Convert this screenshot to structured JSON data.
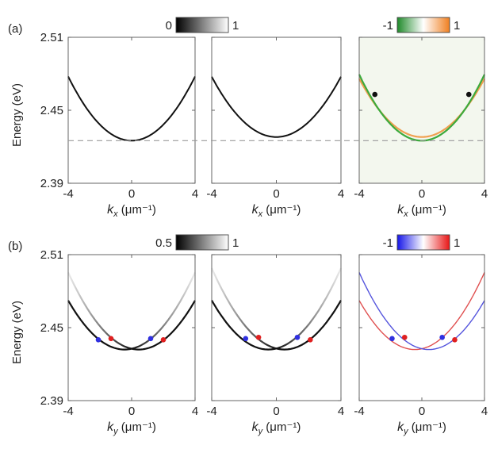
{
  "chart_data": [
    {
      "type": "line",
      "row_label": "(a)",
      "panel": 1,
      "xlabel": "k_x (μm⁻¹)",
      "ylabel": "Energy (eV)",
      "xlim": [
        -4,
        4
      ],
      "ylim": [
        2.39,
        2.51
      ],
      "x_ticks": [
        "-4",
        "0",
        "4"
      ],
      "y_ticks": [
        "2.51",
        "2.45",
        "2.39"
      ],
      "colorbar": {
        "kind": "gray",
        "min_label": "0",
        "max_label": "1"
      },
      "series": [
        {
          "name": "dispersion",
          "color": "#111111",
          "min": 2.425,
          "curv": 0.0033,
          "width": 2.0
        }
      ],
      "reference_line": {
        "y": 2.425,
        "style": "dashed"
      }
    },
    {
      "type": "line",
      "row_label": "",
      "panel": 2,
      "xlabel": "k_x (μm⁻¹)",
      "xlim": [
        -4,
        4
      ],
      "ylim": [
        2.39,
        2.51
      ],
      "x_ticks": [
        "-4",
        "0",
        "4"
      ],
      "series": [
        {
          "name": "dispersion",
          "color": "#111111",
          "min": 2.428,
          "curv": 0.0031,
          "width": 2.0
        }
      ],
      "reference_line": {
        "y": 2.425,
        "style": "dashed"
      }
    },
    {
      "type": "line",
      "row_label": "",
      "panel": 3,
      "xlabel": "k_x (μm⁻¹)",
      "xlim": [
        -4,
        4
      ],
      "ylim": [
        2.39,
        2.51
      ],
      "x_ticks": [
        "-4",
        "0",
        "4"
      ],
      "colorbar": {
        "kind": "green-orange",
        "min_label": "-1",
        "max_label": "1"
      },
      "background": "#f3f7ee",
      "series": [
        {
          "name": "upper branch",
          "color": "#f0a050",
          "min": 2.428,
          "curv": 0.003,
          "width": 2.2
        },
        {
          "name": "lower branch",
          "color": "#3caa3c",
          "min": 2.425,
          "curv": 0.0034,
          "width": 2.2
        }
      ],
      "points": [
        {
          "x": -3.0,
          "y": 2.463,
          "color": "#111111"
        },
        {
          "x": 3.0,
          "y": 2.463,
          "color": "#111111"
        }
      ],
      "reference_line": {
        "y": 2.425,
        "style": "dashed"
      }
    },
    {
      "type": "line",
      "row_label": "(b)",
      "panel": 4,
      "xlabel": "k_y (μm⁻¹)",
      "ylabel": "Energy (eV)",
      "xlim": [
        -4,
        4
      ],
      "ylim": [
        2.39,
        2.51
      ],
      "x_ticks": [
        "-4",
        "0",
        "4"
      ],
      "y_ticks": [
        "2.51",
        "2.45",
        "2.39"
      ],
      "colorbar": {
        "kind": "gray",
        "min_label": "0.5",
        "max_label": "1"
      },
      "series": [
        {
          "name": "branch A",
          "color": "#111111",
          "shift": -0.45,
          "min": 2.432,
          "curv": 0.0032,
          "width": 2.2,
          "fade": "right"
        },
        {
          "name": "branch B",
          "color": "#111111",
          "shift": 0.45,
          "min": 2.432,
          "curv": 0.0032,
          "width": 2.2,
          "fade": "left"
        }
      ],
      "points": [
        {
          "x": -2.1,
          "y": 2.44,
          "color": "#3030e0"
        },
        {
          "x": -1.3,
          "y": 2.441,
          "color": "#e02020"
        },
        {
          "x": 1.2,
          "y": 2.441,
          "color": "#3030e0"
        },
        {
          "x": 2.0,
          "y": 2.44,
          "color": "#e02020"
        }
      ]
    },
    {
      "type": "line",
      "row_label": "",
      "panel": 5,
      "xlabel": "k_y (μm⁻¹)",
      "xlim": [
        -4,
        4
      ],
      "ylim": [
        2.39,
        2.51
      ],
      "x_ticks": [
        "-4",
        "0",
        "4"
      ],
      "series": [
        {
          "name": "branch A",
          "color": "#111111",
          "shift": -0.5,
          "min": 2.432,
          "curv": 0.0033,
          "width": 2.2,
          "fade": "right"
        },
        {
          "name": "branch B",
          "color": "#111111",
          "shift": 0.5,
          "min": 2.432,
          "curv": 0.0033,
          "width": 2.2,
          "fade": "left"
        }
      ],
      "points": [
        {
          "x": -1.9,
          "y": 2.441,
          "color": "#3030e0"
        },
        {
          "x": -1.1,
          "y": 2.442,
          "color": "#e02020"
        },
        {
          "x": 1.3,
          "y": 2.442,
          "color": "#3030e0"
        },
        {
          "x": 2.1,
          "y": 2.44,
          "color": "#e02020"
        }
      ]
    },
    {
      "type": "line",
      "row_label": "",
      "panel": 6,
      "xlabel": "k_y (μm⁻¹)",
      "xlim": [
        -4,
        4
      ],
      "ylim": [
        2.39,
        2.51
      ],
      "x_ticks": [
        "-4",
        "0",
        "4"
      ],
      "colorbar": {
        "kind": "blue-red",
        "min_label": "-1",
        "max_label": "1"
      },
      "series": [
        {
          "name": "branch A",
          "color": "#e05050",
          "shift": -0.45,
          "min": 2.432,
          "curv": 0.0032,
          "width": 1.4
        },
        {
          "name": "branch B",
          "color": "#5555dd",
          "shift": 0.45,
          "min": 2.432,
          "curv": 0.0032,
          "width": 1.4
        }
      ],
      "points": [
        {
          "x": -1.9,
          "y": 2.441,
          "color": "#3030e0"
        },
        {
          "x": -1.1,
          "y": 2.442,
          "color": "#e02020"
        },
        {
          "x": 1.3,
          "y": 2.442,
          "color": "#3030e0"
        },
        {
          "x": 2.1,
          "y": 2.44,
          "color": "#e02020"
        }
      ]
    }
  ]
}
